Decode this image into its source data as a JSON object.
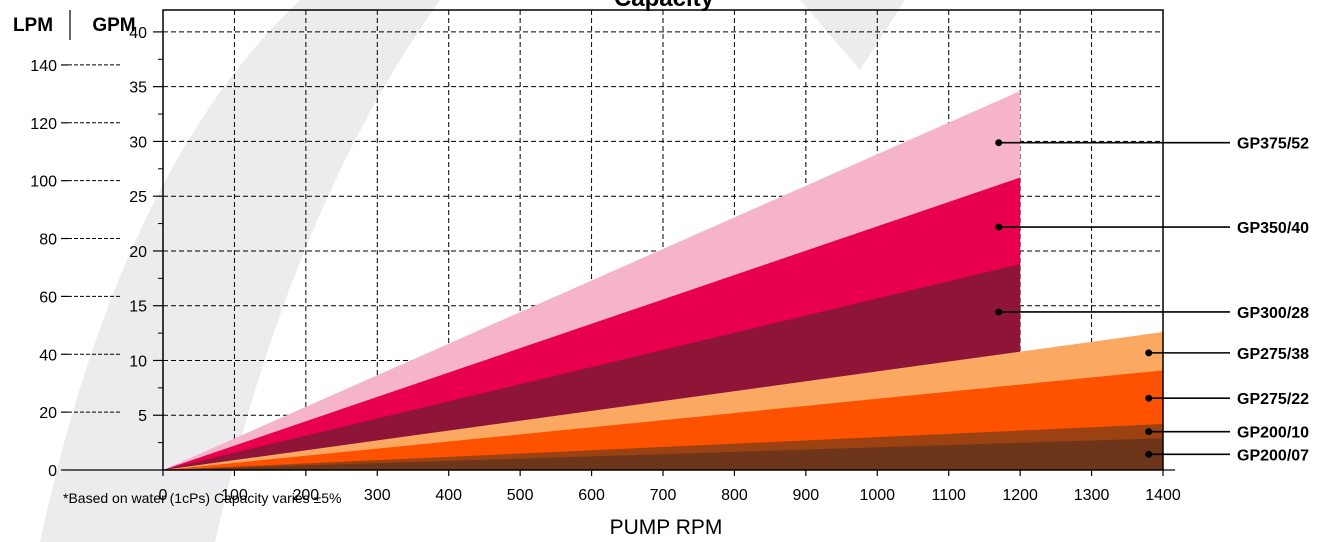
{
  "chart_data": {
    "type": "area",
    "title": "Capacity",
    "xlabel": "PUMP RPM",
    "ylabel_left": "LPM",
    "ylabel_right": "GPM",
    "footnote": "*Based on water (1cPs) Capacity varies ±5%",
    "xlim": [
      0,
      1400
    ],
    "ylim_gpm": [
      0,
      42
    ],
    "x_ticks": [
      "0",
      "100",
      "200",
      "300",
      "400",
      "500",
      "600",
      "700",
      "800",
      "900",
      "1000",
      "1100",
      "1200",
      "1300",
      "1400"
    ],
    "gpm_ticks": [
      "5",
      "10",
      "15",
      "20",
      "25",
      "30",
      "35",
      "40"
    ],
    "lpm_ticks": [
      "0",
      "20",
      "40",
      "60",
      "80",
      "100",
      "120",
      "140"
    ],
    "grid": true,
    "legend_position": "right",
    "series": [
      {
        "name": "GP375/52",
        "color": "#f6b4cb",
        "x": [
          0,
          1200
        ],
        "y": [
          0,
          34.6
        ]
      },
      {
        "name": "GP350/40",
        "color": "#e8004f",
        "x": [
          0,
          1200
        ],
        "y": [
          0,
          26.7
        ]
      },
      {
        "name": "GP300/28",
        "color": "#8e1537",
        "x": [
          0,
          1200
        ],
        "y": [
          0,
          18.8
        ]
      },
      {
        "name": "GP275/38",
        "color": "#fba862",
        "x": [
          0,
          1400
        ],
        "y": [
          0,
          12.6
        ]
      },
      {
        "name": "GP275/22",
        "color": "#ff5200",
        "x": [
          0,
          1400
        ],
        "y": [
          0,
          9.1
        ]
      },
      {
        "name": "GP200/10",
        "color": "#9b4112",
        "x": [
          0,
          1400
        ],
        "y": [
          0,
          4.2
        ]
      },
      {
        "name": "GP200/07",
        "color": "#6d361b",
        "x": [
          0,
          1400
        ],
        "y": [
          0,
          2.9
        ]
      }
    ]
  }
}
